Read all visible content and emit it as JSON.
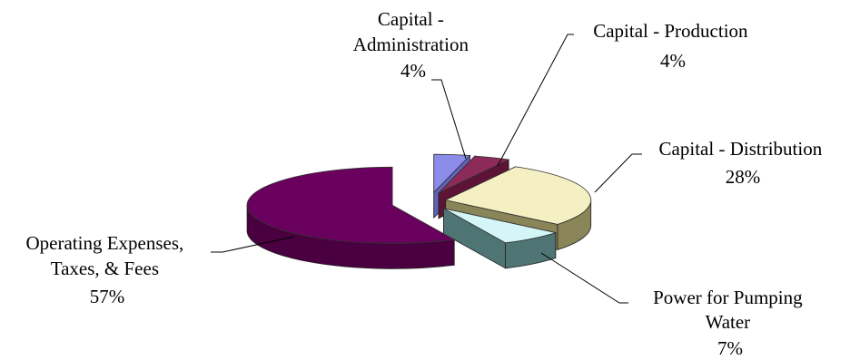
{
  "chart_data": {
    "type": "pie",
    "title": "",
    "style": "3d-exploded",
    "legend": "none",
    "slices": [
      {
        "label_lines": [
          "Capital -",
          "Administration"
        ],
        "pct_text": "4%",
        "value": 4,
        "color": "#8b8bea",
        "side_color": "#6161b8"
      },
      {
        "label_lines": [
          "Capital - Production"
        ],
        "pct_text": "4%",
        "value": 4,
        "color": "#8c2a5a",
        "side_color": "#5c1336"
      },
      {
        "label_lines": [
          "Capital - Distribution"
        ],
        "pct_text": "28%",
        "value": 28,
        "color": "#f4f0c4",
        "side_color": "#8a8558"
      },
      {
        "label_lines": [
          "Power for Pumping",
          "Water"
        ],
        "pct_text": "7%",
        "value": 7,
        "color": "#d4f6f6",
        "side_color": "#4f7474"
      },
      {
        "label_lines": [
          "Operating Expenses,",
          "Taxes, & Fees"
        ],
        "pct_text": "57%",
        "value": 57,
        "color": "#6a005e",
        "side_color": "#4a0040"
      }
    ]
  }
}
